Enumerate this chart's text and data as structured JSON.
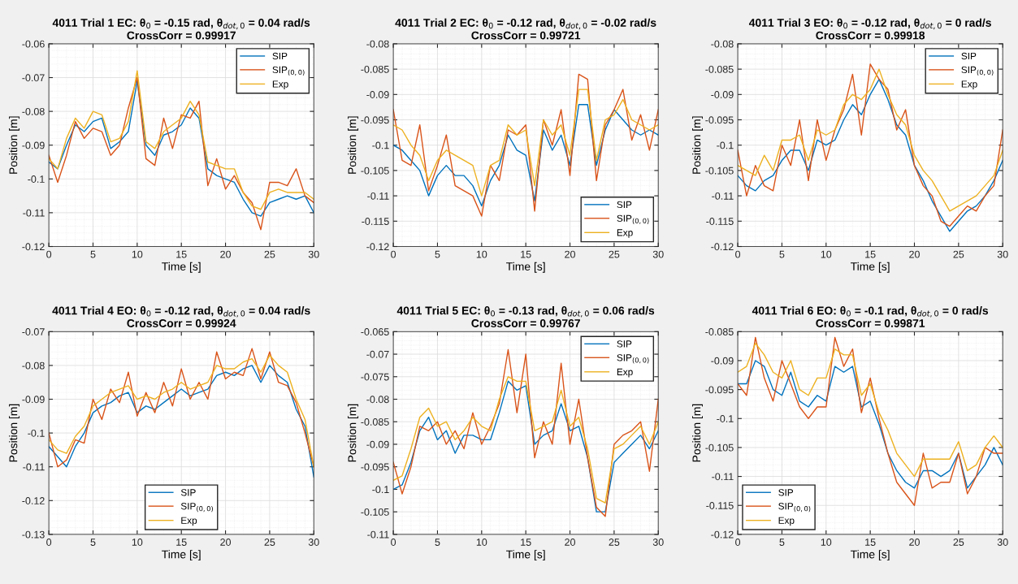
{
  "chart_data": [
    {
      "type": "line",
      "title": "4011 Trial 1 EC: θ$_{0}$ = -0.15 rad, θ$_{dot,0}$ = 0.04 rad/s",
      "subtitle": "CrossCorr = 0.99917",
      "xlabel": "Time [s]",
      "ylabel": "Position [m]",
      "x": [
        0,
        1,
        2,
        3,
        4,
        5,
        6,
        7,
        8,
        9,
        10,
        11,
        12,
        13,
        14,
        15,
        16,
        17,
        18,
        19,
        20,
        21,
        22,
        23,
        24,
        25,
        26,
        27,
        28,
        29,
        30
      ],
      "xlim": [
        0,
        30
      ],
      "xticks": [
        0,
        5,
        10,
        15,
        20,
        25,
        30
      ],
      "ylim": [
        -0.12,
        -0.06
      ],
      "yticks": [
        -0.12,
        -0.11,
        -0.1,
        -0.09,
        -0.08,
        -0.07,
        -0.06
      ],
      "grid": true,
      "legend": "top right",
      "series": [
        {
          "name": "SIP",
          "color": "#0072bd",
          "values": [
            -0.095,
            -0.097,
            -0.09,
            -0.084,
            -0.086,
            -0.083,
            -0.082,
            -0.091,
            -0.089,
            -0.086,
            -0.071,
            -0.09,
            -0.093,
            -0.087,
            -0.086,
            -0.084,
            -0.079,
            -0.082,
            -0.097,
            -0.099,
            -0.1,
            -0.101,
            -0.106,
            -0.11,
            -0.111,
            -0.107,
            -0.106,
            -0.105,
            -0.106,
            -0.105,
            -0.11
          ]
        },
        {
          "name": "SIP$_{(0,0)}$",
          "color": "#d95319",
          "values": [
            -0.093,
            -0.101,
            -0.093,
            -0.083,
            -0.088,
            -0.085,
            -0.086,
            -0.093,
            -0.09,
            -0.079,
            -0.07,
            -0.094,
            -0.096,
            -0.082,
            -0.091,
            -0.081,
            -0.082,
            -0.077,
            -0.102,
            -0.094,
            -0.103,
            -0.099,
            -0.104,
            -0.107,
            -0.115,
            -0.101,
            -0.101,
            -0.102,
            -0.097,
            -0.105,
            -0.107
          ]
        },
        {
          "name": "Exp",
          "color": "#edb120",
          "values": [
            -0.094,
            -0.097,
            -0.088,
            -0.082,
            -0.085,
            -0.08,
            -0.081,
            -0.089,
            -0.088,
            -0.083,
            -0.068,
            -0.089,
            -0.091,
            -0.086,
            -0.084,
            -0.082,
            -0.077,
            -0.081,
            -0.095,
            -0.096,
            -0.097,
            -0.097,
            -0.104,
            -0.108,
            -0.109,
            -0.104,
            -0.103,
            -0.104,
            -0.104,
            -0.104,
            -0.106
          ]
        }
      ]
    },
    {
      "type": "line",
      "title": "4011 Trial 2 EC: θ$_{0}$ = -0.12 rad, θ$_{dot,0}$ = -0.02 rad/s",
      "subtitle": "CrossCorr = 0.99721",
      "xlabel": "Time [s]",
      "ylabel": "Position [m]",
      "x": [
        0,
        1,
        2,
        3,
        4,
        5,
        6,
        7,
        8,
        9,
        10,
        11,
        12,
        13,
        14,
        15,
        16,
        17,
        18,
        19,
        20,
        21,
        22,
        23,
        24,
        25,
        26,
        27,
        28,
        29,
        30
      ],
      "xlim": [
        0,
        30
      ],
      "xticks": [
        0,
        5,
        10,
        15,
        20,
        25,
        30
      ],
      "ylim": [
        -0.12,
        -0.08
      ],
      "yticks": [
        -0.12,
        -0.115,
        -0.11,
        -0.105,
        -0.1,
        -0.095,
        -0.09,
        -0.085,
        -0.08
      ],
      "grid": true,
      "legend": "bottom right",
      "series": [
        {
          "name": "SIP",
          "color": "#0072bd",
          "values": [
            -0.1,
            -0.101,
            -0.103,
            -0.105,
            -0.11,
            -0.106,
            -0.104,
            -0.106,
            -0.106,
            -0.108,
            -0.112,
            -0.107,
            -0.104,
            -0.098,
            -0.101,
            -0.102,
            -0.111,
            -0.097,
            -0.101,
            -0.098,
            -0.104,
            -0.092,
            -0.092,
            -0.104,
            -0.097,
            -0.093,
            -0.095,
            -0.097,
            -0.098,
            -0.097,
            -0.098
          ]
        },
        {
          "name": "SIP$_{(0,0)}$",
          "color": "#d95319",
          "values": [
            -0.093,
            -0.103,
            -0.104,
            -0.096,
            -0.109,
            -0.104,
            -0.098,
            -0.108,
            -0.109,
            -0.11,
            -0.114,
            -0.104,
            -0.107,
            -0.097,
            -0.098,
            -0.096,
            -0.113,
            -0.095,
            -0.1,
            -0.093,
            -0.106,
            -0.086,
            -0.087,
            -0.107,
            -0.096,
            -0.093,
            -0.089,
            -0.099,
            -0.094,
            -0.101,
            -0.093
          ]
        },
        {
          "name": "Exp",
          "color": "#edb120",
          "values": [
            -0.096,
            -0.097,
            -0.1,
            -0.102,
            -0.107,
            -0.103,
            -0.101,
            -0.102,
            -0.103,
            -0.104,
            -0.11,
            -0.104,
            -0.103,
            -0.096,
            -0.098,
            -0.097,
            -0.108,
            -0.095,
            -0.098,
            -0.096,
            -0.102,
            -0.089,
            -0.089,
            -0.103,
            -0.095,
            -0.094,
            -0.091,
            -0.095,
            -0.096,
            -0.097,
            -0.096
          ]
        }
      ]
    },
    {
      "type": "line",
      "title": "4011 Trial 3 EO: θ$_{0}$ = -0.12 rad, θ$_{dot,0}$ = 0 rad/s",
      "subtitle": "CrossCorr = 0.99918",
      "xlabel": "Time [s]",
      "ylabel": "Position [m]",
      "x": [
        0,
        1,
        2,
        3,
        4,
        5,
        6,
        7,
        8,
        9,
        10,
        11,
        12,
        13,
        14,
        15,
        16,
        17,
        18,
        19,
        20,
        21,
        22,
        23,
        24,
        25,
        26,
        27,
        28,
        29,
        30
      ],
      "xlim": [
        0,
        30
      ],
      "xticks": [
        0,
        5,
        10,
        15,
        20,
        25,
        30
      ],
      "ylim": [
        -0.12,
        -0.08
      ],
      "yticks": [
        -0.12,
        -0.115,
        -0.11,
        -0.105,
        -0.1,
        -0.095,
        -0.09,
        -0.085,
        -0.08
      ],
      "grid": true,
      "legend": "top right",
      "series": [
        {
          "name": "SIP",
          "color": "#0072bd",
          "values": [
            -0.106,
            -0.108,
            -0.109,
            -0.107,
            -0.106,
            -0.103,
            -0.101,
            -0.101,
            -0.105,
            -0.099,
            -0.1,
            -0.099,
            -0.095,
            -0.092,
            -0.094,
            -0.09,
            -0.087,
            -0.091,
            -0.096,
            -0.098,
            -0.104,
            -0.107,
            -0.111,
            -0.114,
            -0.117,
            -0.115,
            -0.113,
            -0.112,
            -0.11,
            -0.107,
            -0.103
          ]
        },
        {
          "name": "SIP$_{(0,0)}$",
          "color": "#d95319",
          "values": [
            -0.101,
            -0.11,
            -0.104,
            -0.108,
            -0.109,
            -0.1,
            -0.104,
            -0.095,
            -0.107,
            -0.095,
            -0.103,
            -0.097,
            -0.093,
            -0.086,
            -0.098,
            -0.084,
            -0.087,
            -0.089,
            -0.097,
            -0.093,
            -0.104,
            -0.108,
            -0.11,
            -0.115,
            -0.116,
            -0.114,
            -0.112,
            -0.113,
            -0.11,
            -0.108,
            -0.097
          ]
        },
        {
          "name": "Exp",
          "color": "#edb120",
          "values": [
            -0.104,
            -0.105,
            -0.106,
            -0.102,
            -0.105,
            -0.099,
            -0.099,
            -0.098,
            -0.103,
            -0.097,
            -0.098,
            -0.097,
            -0.092,
            -0.09,
            -0.091,
            -0.089,
            -0.085,
            -0.09,
            -0.094,
            -0.096,
            -0.102,
            -0.105,
            -0.107,
            -0.11,
            -0.113,
            -0.112,
            -0.111,
            -0.11,
            -0.108,
            -0.106,
            -0.101
          ]
        }
      ]
    },
    {
      "type": "line",
      "title": "4011 Trial 4 EO: θ$_{0}$ = -0.12 rad, θ$_{dot,0}$ = 0.04 rad/s",
      "subtitle": "CrossCorr = 0.99924",
      "xlabel": "Time [s]",
      "ylabel": "Position [m]",
      "x": [
        0,
        1,
        2,
        3,
        4,
        5,
        6,
        7,
        8,
        9,
        10,
        11,
        12,
        13,
        14,
        15,
        16,
        17,
        18,
        19,
        20,
        21,
        22,
        23,
        24,
        25,
        26,
        27,
        28,
        29,
        30
      ],
      "xlim": [
        0,
        30
      ],
      "xticks": [
        0,
        5,
        10,
        15,
        20,
        25,
        30
      ],
      "ylim": [
        -0.13,
        -0.07
      ],
      "yticks": [
        -0.13,
        -0.12,
        -0.11,
        -0.1,
        -0.09,
        -0.08,
        -0.07
      ],
      "grid": true,
      "legend": "bottom",
      "series": [
        {
          "name": "SIP",
          "color": "#0072bd",
          "values": [
            -0.104,
            -0.107,
            -0.11,
            -0.104,
            -0.1,
            -0.094,
            -0.092,
            -0.091,
            -0.089,
            -0.088,
            -0.094,
            -0.092,
            -0.093,
            -0.091,
            -0.089,
            -0.087,
            -0.089,
            -0.088,
            -0.087,
            -0.083,
            -0.082,
            -0.083,
            -0.081,
            -0.08,
            -0.085,
            -0.08,
            -0.083,
            -0.085,
            -0.093,
            -0.098,
            -0.113
          ]
        },
        {
          "name": "SIP$_{(0,0)}$",
          "color": "#d95319",
          "values": [
            -0.1,
            -0.11,
            -0.108,
            -0.102,
            -0.103,
            -0.09,
            -0.096,
            -0.087,
            -0.091,
            -0.082,
            -0.095,
            -0.088,
            -0.094,
            -0.085,
            -0.092,
            -0.081,
            -0.09,
            -0.085,
            -0.09,
            -0.076,
            -0.084,
            -0.082,
            -0.083,
            -0.075,
            -0.084,
            -0.076,
            -0.085,
            -0.086,
            -0.091,
            -0.1,
            -0.11
          ]
        },
        {
          "name": "Exp",
          "color": "#edb120",
          "values": [
            -0.102,
            -0.105,
            -0.106,
            -0.101,
            -0.098,
            -0.092,
            -0.09,
            -0.088,
            -0.087,
            -0.086,
            -0.09,
            -0.089,
            -0.09,
            -0.088,
            -0.087,
            -0.085,
            -0.087,
            -0.086,
            -0.085,
            -0.08,
            -0.081,
            -0.081,
            -0.079,
            -0.078,
            -0.082,
            -0.077,
            -0.08,
            -0.082,
            -0.09,
            -0.096,
            -0.11
          ]
        }
      ]
    },
    {
      "type": "line",
      "title": "4011 Trial 5 EC: θ$_{0}$ = -0.13 rad, θ$_{dot,0}$ = 0.06 rad/s",
      "subtitle": "CrossCorr = 0.99767",
      "xlabel": "Time [s]",
      "ylabel": "Position [m]",
      "x": [
        0,
        1,
        2,
        3,
        4,
        5,
        6,
        7,
        8,
        9,
        10,
        11,
        12,
        13,
        14,
        15,
        16,
        17,
        18,
        19,
        20,
        21,
        22,
        23,
        24,
        25,
        26,
        27,
        28,
        29,
        30
      ],
      "xlim": [
        0,
        30
      ],
      "xticks": [
        0,
        5,
        10,
        15,
        20,
        25,
        30
      ],
      "ylim": [
        -0.11,
        -0.065
      ],
      "yticks": [
        -0.11,
        -0.105,
        -0.1,
        -0.095,
        -0.09,
        -0.085,
        -0.08,
        -0.075,
        -0.07,
        -0.065
      ],
      "grid": true,
      "legend": "top right",
      "series": [
        {
          "name": "SIP",
          "color": "#0072bd",
          "values": [
            -0.1,
            -0.099,
            -0.094,
            -0.087,
            -0.084,
            -0.089,
            -0.087,
            -0.092,
            -0.088,
            -0.088,
            -0.089,
            -0.089,
            -0.083,
            -0.076,
            -0.078,
            -0.077,
            -0.09,
            -0.088,
            -0.087,
            -0.081,
            -0.087,
            -0.086,
            -0.093,
            -0.105,
            -0.105,
            -0.094,
            -0.092,
            -0.09,
            -0.088,
            -0.091,
            -0.087
          ]
        },
        {
          "name": "SIP$_{(0,0)}$",
          "color": "#d95319",
          "values": [
            -0.094,
            -0.101,
            -0.095,
            -0.086,
            -0.087,
            -0.085,
            -0.09,
            -0.087,
            -0.091,
            -0.083,
            -0.09,
            -0.086,
            -0.081,
            -0.069,
            -0.083,
            -0.07,
            -0.093,
            -0.085,
            -0.09,
            -0.072,
            -0.09,
            -0.08,
            -0.093,
            -0.104,
            -0.106,
            -0.09,
            -0.088,
            -0.087,
            -0.085,
            -0.096,
            -0.08
          ]
        },
        {
          "name": "Exp",
          "color": "#edb120",
          "values": [
            -0.098,
            -0.097,
            -0.091,
            -0.084,
            -0.082,
            -0.086,
            -0.085,
            -0.089,
            -0.087,
            -0.084,
            -0.086,
            -0.087,
            -0.08,
            -0.075,
            -0.076,
            -0.076,
            -0.087,
            -0.086,
            -0.085,
            -0.078,
            -0.086,
            -0.084,
            -0.091,
            -0.102,
            -0.103,
            -0.091,
            -0.09,
            -0.088,
            -0.086,
            -0.09,
            -0.085
          ]
        }
      ]
    },
    {
      "type": "line",
      "title": "4011 Trial 6 EO: θ$_{0}$ = -0.1 rad, θ$_{dot,0}$ = 0 rad/s",
      "subtitle": "CrossCorr = 0.99871",
      "xlabel": "Time [s]",
      "ylabel": "Position [m]",
      "x": [
        0,
        1,
        2,
        3,
        4,
        5,
        6,
        7,
        8,
        9,
        10,
        11,
        12,
        13,
        14,
        15,
        16,
        17,
        18,
        19,
        20,
        21,
        22,
        23,
        24,
        25,
        26,
        27,
        28,
        29,
        30
      ],
      "xlim": [
        0,
        30
      ],
      "xticks": [
        0,
        5,
        10,
        15,
        20,
        25,
        30
      ],
      "ylim": [
        -0.12,
        -0.085
      ],
      "yticks": [
        -0.12,
        -0.115,
        -0.11,
        -0.105,
        -0.1,
        -0.095,
        -0.09,
        -0.085
      ],
      "grid": true,
      "legend": "bottom left",
      "series": [
        {
          "name": "SIP",
          "color": "#0072bd",
          "values": [
            -0.094,
            -0.094,
            -0.09,
            -0.091,
            -0.095,
            -0.096,
            -0.092,
            -0.097,
            -0.098,
            -0.096,
            -0.097,
            -0.091,
            -0.092,
            -0.091,
            -0.098,
            -0.097,
            -0.101,
            -0.106,
            -0.109,
            -0.111,
            -0.112,
            -0.109,
            -0.109,
            -0.11,
            -0.109,
            -0.106,
            -0.112,
            -0.11,
            -0.108,
            -0.105,
            -0.108
          ]
        },
        {
          "name": "SIP$_{(0,0)}$",
          "color": "#d95319",
          "values": [
            -0.094,
            -0.096,
            -0.086,
            -0.093,
            -0.097,
            -0.09,
            -0.094,
            -0.098,
            -0.1,
            -0.098,
            -0.098,
            -0.086,
            -0.091,
            -0.088,
            -0.099,
            -0.093,
            -0.1,
            -0.106,
            -0.111,
            -0.113,
            -0.115,
            -0.106,
            -0.112,
            -0.111,
            -0.111,
            -0.106,
            -0.113,
            -0.11,
            -0.105,
            -0.106,
            -0.106
          ]
        },
        {
          "name": "Exp",
          "color": "#edb120",
          "values": [
            -0.092,
            -0.091,
            -0.087,
            -0.089,
            -0.092,
            -0.093,
            -0.09,
            -0.095,
            -0.096,
            -0.093,
            -0.093,
            -0.088,
            -0.089,
            -0.089,
            -0.096,
            -0.094,
            -0.099,
            -0.102,
            -0.106,
            -0.108,
            -0.11,
            -0.107,
            -0.107,
            -0.107,
            -0.107,
            -0.104,
            -0.109,
            -0.108,
            -0.105,
            -0.103,
            -0.105
          ]
        }
      ]
    }
  ]
}
